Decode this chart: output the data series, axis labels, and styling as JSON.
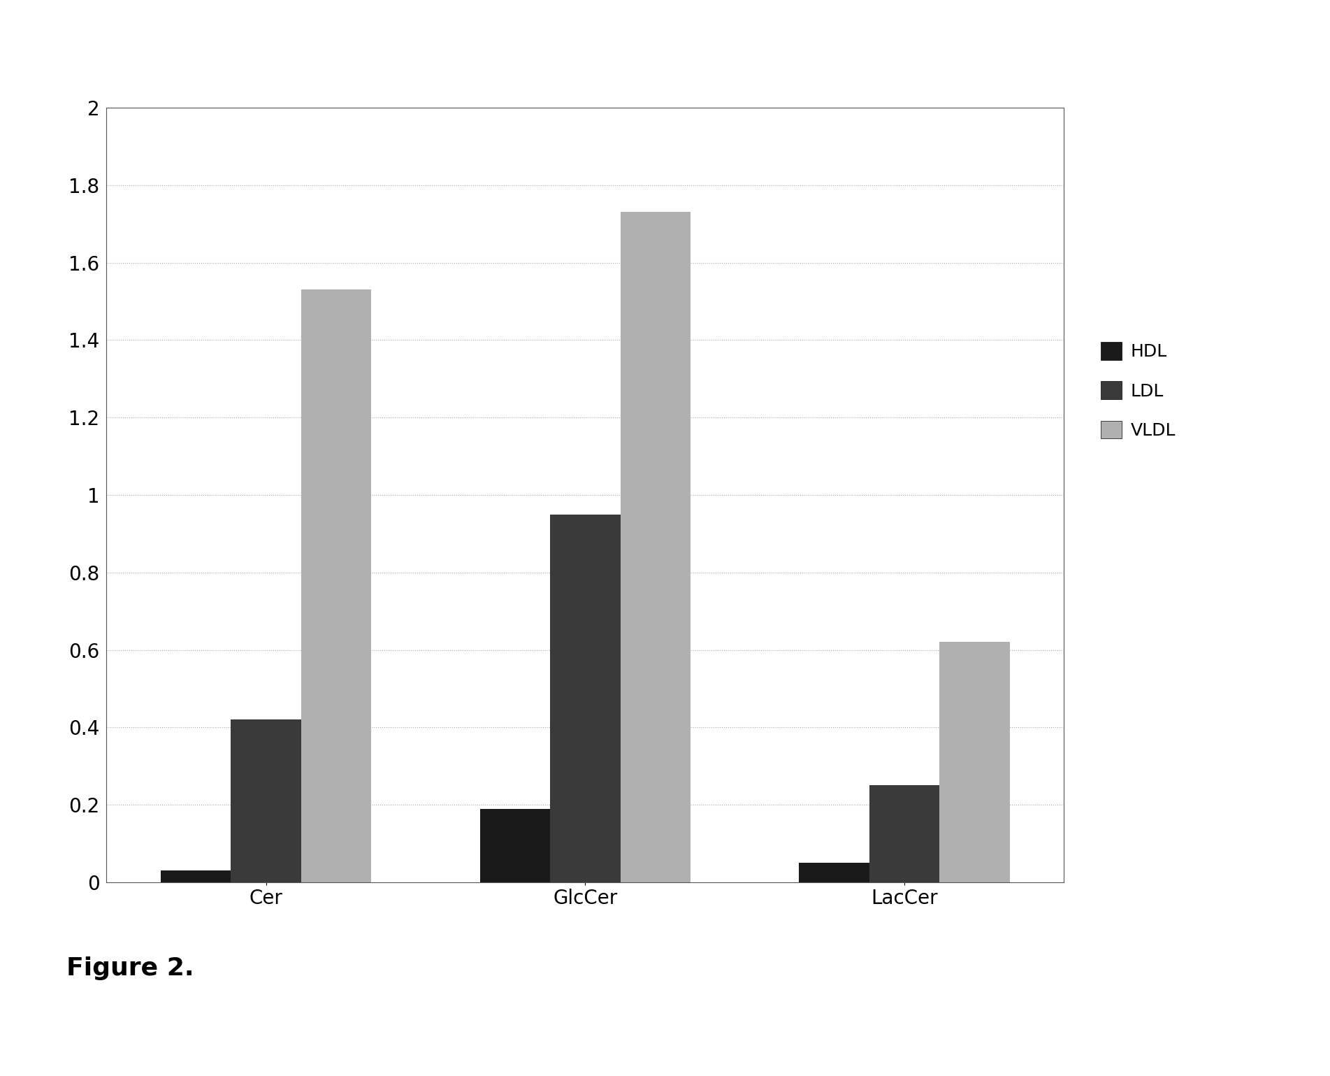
{
  "categories": [
    "Cer",
    "GlcCer",
    "LacCer"
  ],
  "series": {
    "HDL": [
      0.03,
      0.19,
      0.05
    ],
    "LDL": [
      0.42,
      0.95,
      0.25
    ],
    "VLDL": [
      1.53,
      1.73,
      0.62
    ]
  },
  "colors": {
    "HDL": "#1a1a1a",
    "LDL": "#3a3a3a",
    "VLDL": "#b0b0b0"
  },
  "hatch": {
    "HDL": "",
    "LDL": "",
    "VLDL": ""
  },
  "ylim": [
    0,
    2.0
  ],
  "yticks": [
    0,
    0.2,
    0.4,
    0.6,
    0.8,
    1.0,
    1.2,
    1.4,
    1.6,
    1.8,
    2.0
  ],
  "ytick_labels": [
    "0",
    "0.2",
    "0.4",
    "0.6",
    "0.8",
    "1",
    "1.2",
    "1.4",
    "1.6",
    "1.8",
    "2"
  ],
  "legend_labels": [
    "HDL",
    "LDL",
    "VLDL"
  ],
  "figure_caption": "Figure 2.",
  "bar_width": 0.22,
  "background_color": "#ffffff",
  "grid_color": "#aaaaaa",
  "grid_linestyle": "dotted",
  "font_size_ticks": 20,
  "font_size_xticklabels": 20,
  "font_size_legend": 18,
  "font_size_caption": 26
}
